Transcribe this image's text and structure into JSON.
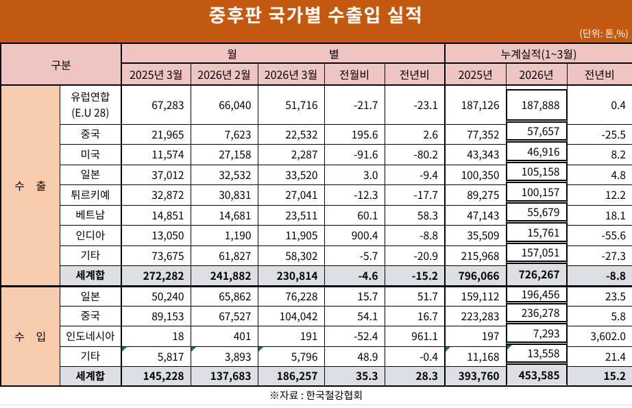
{
  "title": "중후판 국가별 수출입 실적",
  "unit_label": "(단위: 톤,%)",
  "footnote": "※자료 : 한국철강협회",
  "colors": {
    "banner_orange": "#c45911",
    "header_pink": "#eec5c0",
    "section_peach": "#f8cbad",
    "total_gray": "#dcdee4",
    "indicator_green": "#1e7b34",
    "border_black": "#000000"
  },
  "table": {
    "group_header": {
      "gubun": "구분",
      "monthly_part1": "월",
      "monthly_part2": "별",
      "monthly_label": "월별",
      "cumulative": "누계실적(1~3월)"
    },
    "columns": [
      "2025년 3월",
      "2026년 2월",
      "2026년 3월",
      "전월비",
      "전년비",
      "2025년",
      "2026년",
      "전년비"
    ],
    "sections": [
      {
        "label": "수 출",
        "rows": [
          {
            "name": "유럽연합\n(E.U 28)",
            "values": [
              "67,283",
              "66,040",
              "51,716",
              "-21.7",
              "-23.1",
              "187,126",
              "187,888",
              "0.4"
            ]
          },
          {
            "name": "중국",
            "values": [
              "21,965",
              "7,623",
              "22,532",
              "195.6",
              "2.6",
              "77,352",
              "57,657",
              "-25.5"
            ]
          },
          {
            "name": "미국",
            "values": [
              "11,574",
              "27,158",
              "2,287",
              "-91.6",
              "-80.2",
              "43,343",
              "46,916",
              "8.2"
            ]
          },
          {
            "name": "일본",
            "values": [
              "37,012",
              "32,532",
              "33,520",
              "3.0",
              "-9.4",
              "100,350",
              "105,158",
              "4.8"
            ]
          },
          {
            "name": "튀르키예",
            "values": [
              "32,872",
              "30,831",
              "27,041",
              "-12.3",
              "-17.7",
              "89,275",
              "100,157",
              "12.2"
            ]
          },
          {
            "name": "베트남",
            "values": [
              "14,851",
              "14,681",
              "23,511",
              "60.1",
              "58.3",
              "47,143",
              "55,679",
              "18.1"
            ]
          },
          {
            "name": "인디아",
            "values": [
              "13,050",
              "1,190",
              "11,905",
              "900.4",
              "-8.8",
              "35,509",
              "15,761",
              "-55.6"
            ]
          },
          {
            "name": "기타",
            "values": [
              "73,675",
              "61,827",
              "58,302",
              "-5.7",
              "-20.9",
              "215,968",
              "157,051",
              "-27.3"
            ]
          },
          {
            "name": "세계합",
            "values": [
              "272,282",
              "241,882",
              "230,814",
              "-4.6",
              "-15.2",
              "796,066",
              "726,267",
              "-8.8"
            ],
            "total": true
          }
        ]
      },
      {
        "label": "수 입",
        "rows": [
          {
            "name": "일본",
            "values": [
              "50,240",
              "65,862",
              "76,228",
              "15.7",
              "51.7",
              "159,112",
              "196,456",
              "23.5"
            ]
          },
          {
            "name": "중국",
            "values": [
              "89,153",
              "67,527",
              "104,042",
              "54.1",
              "16.7",
              "223,283",
              "236,278",
              "5.8"
            ]
          },
          {
            "name": "인도네시아",
            "values": [
              "18",
              "401",
              "191",
              "-52.4",
              "961.1",
              "197",
              "7,293",
              "3,602.0"
            ]
          },
          {
            "name": "기타",
            "values": [
              "5,817",
              "3,893",
              "5,796",
              "48.9",
              "-0.4",
              "11,168",
              "13,558",
              "21.4"
            ],
            "indicators": [
              0,
              1,
              2,
              5,
              6
            ]
          },
          {
            "name": "세계합",
            "values": [
              "145,228",
              "137,683",
              "186,257",
              "35.3",
              "28.3",
              "393,760",
              "453,585",
              "15.2"
            ],
            "total": true
          }
        ]
      }
    ]
  },
  "chart_data": {
    "type": "table",
    "title": "중후판 국가별 수출입 실적",
    "unit": "(단위: 톤,%)",
    "column_groups": [
      "월별",
      "누계실적(1~3월)"
    ],
    "columns": [
      "2025년 3월",
      "2026년 2월",
      "2026년 3월",
      "전월비",
      "전년비",
      "2025년",
      "2026년",
      "전년비"
    ],
    "rows": [
      {
        "section": "수출",
        "country": "유럽연합 (E.U 28)",
        "values": [
          67283,
          66040,
          51716,
          -21.7,
          -23.1,
          187126,
          187888,
          0.4
        ]
      },
      {
        "section": "수출",
        "country": "중국",
        "values": [
          21965,
          7623,
          22532,
          195.6,
          2.6,
          77352,
          57657,
          -25.5
        ]
      },
      {
        "section": "수출",
        "country": "미국",
        "values": [
          11574,
          27158,
          2287,
          -91.6,
          -80.2,
          43343,
          46916,
          8.2
        ]
      },
      {
        "section": "수출",
        "country": "일본",
        "values": [
          37012,
          32532,
          33520,
          3.0,
          -9.4,
          100350,
          105158,
          4.8
        ]
      },
      {
        "section": "수출",
        "country": "튀르키예",
        "values": [
          32872,
          30831,
          27041,
          -12.3,
          -17.7,
          89275,
          100157,
          12.2
        ]
      },
      {
        "section": "수출",
        "country": "베트남",
        "values": [
          14851,
          14681,
          23511,
          60.1,
          58.3,
          47143,
          55679,
          18.1
        ]
      },
      {
        "section": "수출",
        "country": "인디아",
        "values": [
          13050,
          1190,
          11905,
          900.4,
          -8.8,
          35509,
          15761,
          -55.6
        ]
      },
      {
        "section": "수출",
        "country": "기타",
        "values": [
          73675,
          61827,
          58302,
          -5.7,
          -20.9,
          215968,
          157051,
          -27.3
        ]
      },
      {
        "section": "수출",
        "country": "세계합",
        "values": [
          272282,
          241882,
          230814,
          -4.6,
          -15.2,
          796066,
          726267,
          -8.8
        ]
      },
      {
        "section": "수입",
        "country": "일본",
        "values": [
          50240,
          65862,
          76228,
          15.7,
          51.7,
          159112,
          196456,
          23.5
        ]
      },
      {
        "section": "수입",
        "country": "중국",
        "values": [
          89153,
          67527,
          104042,
          54.1,
          16.7,
          223283,
          236278,
          5.8
        ]
      },
      {
        "section": "수입",
        "country": "인도네시아",
        "values": [
          18,
          401,
          191,
          -52.4,
          961.1,
          197,
          7293,
          3602.0
        ]
      },
      {
        "section": "수입",
        "country": "기타",
        "values": [
          5817,
          3893,
          5796,
          48.9,
          -0.4,
          11168,
          13558,
          21.4
        ]
      },
      {
        "section": "수입",
        "country": "세계합",
        "values": [
          145228,
          137683,
          186257,
          35.3,
          28.3,
          393760,
          453585,
          15.2
        ]
      }
    ],
    "source": "한국철강협회"
  },
  "layout": {
    "row_heights": {
      "export": [
        57,
        29,
        30,
        29,
        30,
        29,
        30,
        29,
        30
      ],
      "import": [
        29,
        29,
        30,
        29,
        29
      ]
    }
  }
}
